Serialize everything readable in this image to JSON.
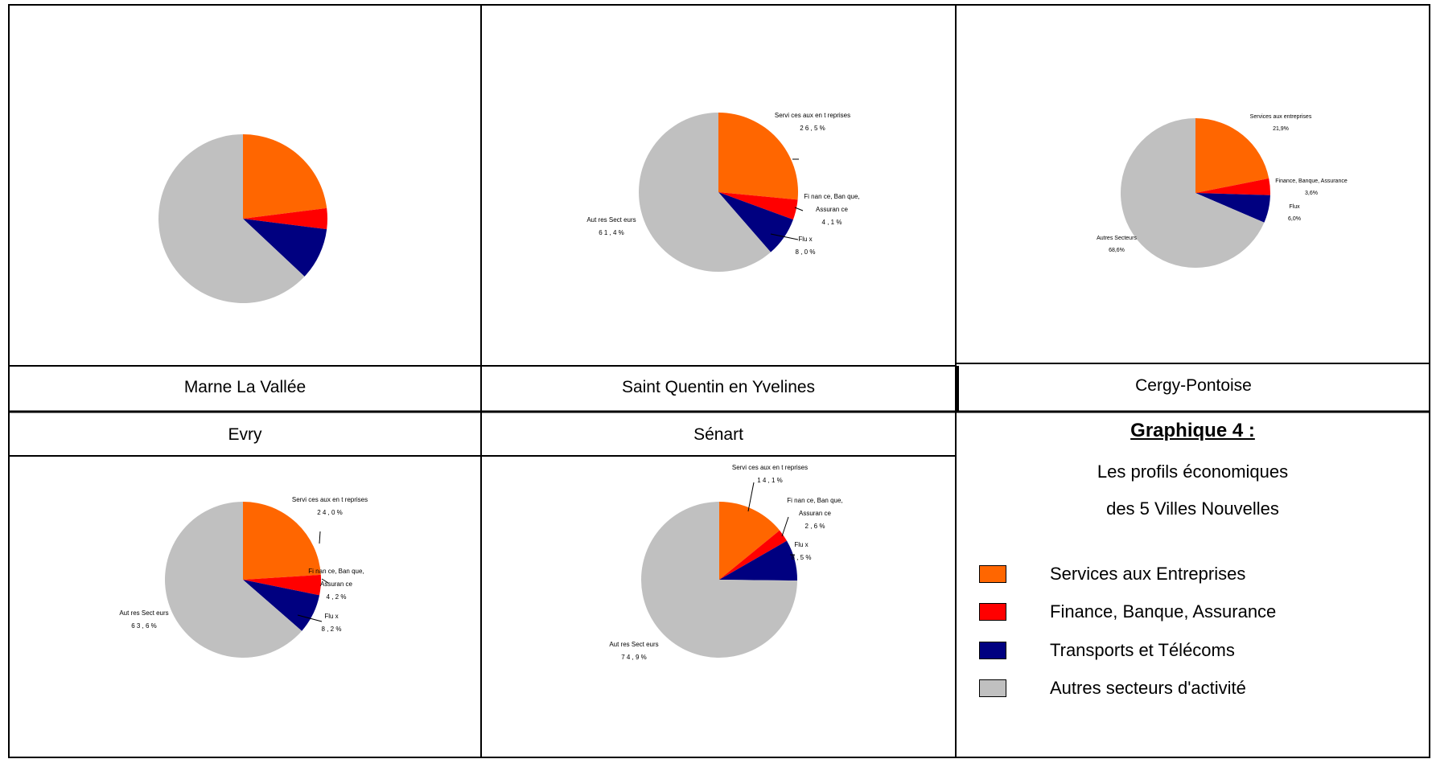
{
  "cells": {
    "marne": "Marne La Vallée",
    "saint_quentin": "Saint Quentin en Yvelines",
    "cergy": "Cergy-Pontoise",
    "evry": "Evry",
    "senart": "Sénart"
  },
  "legend": {
    "title": "Graphique 4 :",
    "subtitle_line1": "Les profils économiques",
    "subtitle_line2": "des 5 Villes Nouvelles",
    "items": [
      {
        "label": "Services aux Entreprises",
        "color": "#FF6600"
      },
      {
        "label": "Finance, Banque, Assurance",
        "color": "#FF0000"
      },
      {
        "label": "Transports et Télécoms",
        "color": "#000080"
      },
      {
        "label": "Autres secteurs d'activité",
        "color": "#C0C0C0"
      }
    ]
  },
  "colors": {
    "services": "#FF6600",
    "finance": "#FF0000",
    "transports": "#000080",
    "autres": "#C0C0C0"
  },
  "chart_data": [
    {
      "type": "pie",
      "name": "Marne La Vallée",
      "categories": [
        "Services aux Entreprises",
        "Finance, Banque, Assurance",
        "Transports et Télécoms",
        "Autres secteurs d'activité"
      ],
      "values": [
        23.0,
        4.0,
        10.0,
        63.0
      ],
      "labels": [
        "",
        "",
        "",
        ""
      ],
      "values_shown": [
        null,
        null,
        null,
        null
      ]
    },
    {
      "type": "pie",
      "name": "Saint Quentin en Yvelines",
      "categories": [
        "Services aux Entreprises",
        "Finance, Banque, Assurance",
        "Transports et Télécoms",
        "Autres secteurs d'activité"
      ],
      "values": [
        26.5,
        4.1,
        8.0,
        61.4
      ],
      "labels": [
        "Servi ces aux en t reprises",
        "Fi nan ce, Ban que, Assuran ce",
        "Flu x",
        "Aut res Sect eurs"
      ],
      "values_shown": [
        "2 6 , 5 %",
        "4 , 1 %",
        "8 , 0 %",
        "6 1 , 4 %"
      ]
    },
    {
      "type": "pie",
      "name": "Cergy-Pontoise",
      "categories": [
        "Services aux Entreprises",
        "Finance, Banque, Assurance",
        "Transports et Télécoms",
        "Autres secteurs d'activité"
      ],
      "values": [
        21.9,
        3.6,
        6.0,
        68.6
      ],
      "labels": [
        "Services aux entreprises",
        "Finance, Banque, Assurance",
        "Flux",
        "Autres Secteurs"
      ],
      "values_shown": [
        "21,9%",
        "3,6%",
        "6,0%",
        "68,6%"
      ]
    },
    {
      "type": "pie",
      "name": "Evry",
      "categories": [
        "Services aux Entreprises",
        "Finance, Banque, Assurance",
        "Transports et Télécoms",
        "Autres secteurs d'activité"
      ],
      "values": [
        24.0,
        4.2,
        8.2,
        63.6
      ],
      "labels": [
        "Servi ces aux en t reprises",
        "Fi nan ce, Ban que, Assuran ce",
        "Flu x",
        "Aut res Sect eurs"
      ],
      "values_shown": [
        "2 4 , 0 %",
        "4 , 2 %",
        "8 , 2 %",
        "6 3 , 6 %"
      ]
    },
    {
      "type": "pie",
      "name": "Sénart",
      "categories": [
        "Services aux Entreprises",
        "Finance, Banque, Assurance",
        "Transports et Télécoms",
        "Autres secteurs d'activité"
      ],
      "values": [
        14.1,
        2.6,
        8.5,
        74.9
      ],
      "labels": [
        "Servi ces aux en t reprises",
        "Fi nan ce, Ban que, Assuran ce",
        "Flu x",
        "Aut res Sect eurs"
      ],
      "values_shown": [
        "1 4 , 1 %",
        "2 , 6 %",
        "8 , 5 %",
        "7 4 , 9 %"
      ]
    }
  ]
}
